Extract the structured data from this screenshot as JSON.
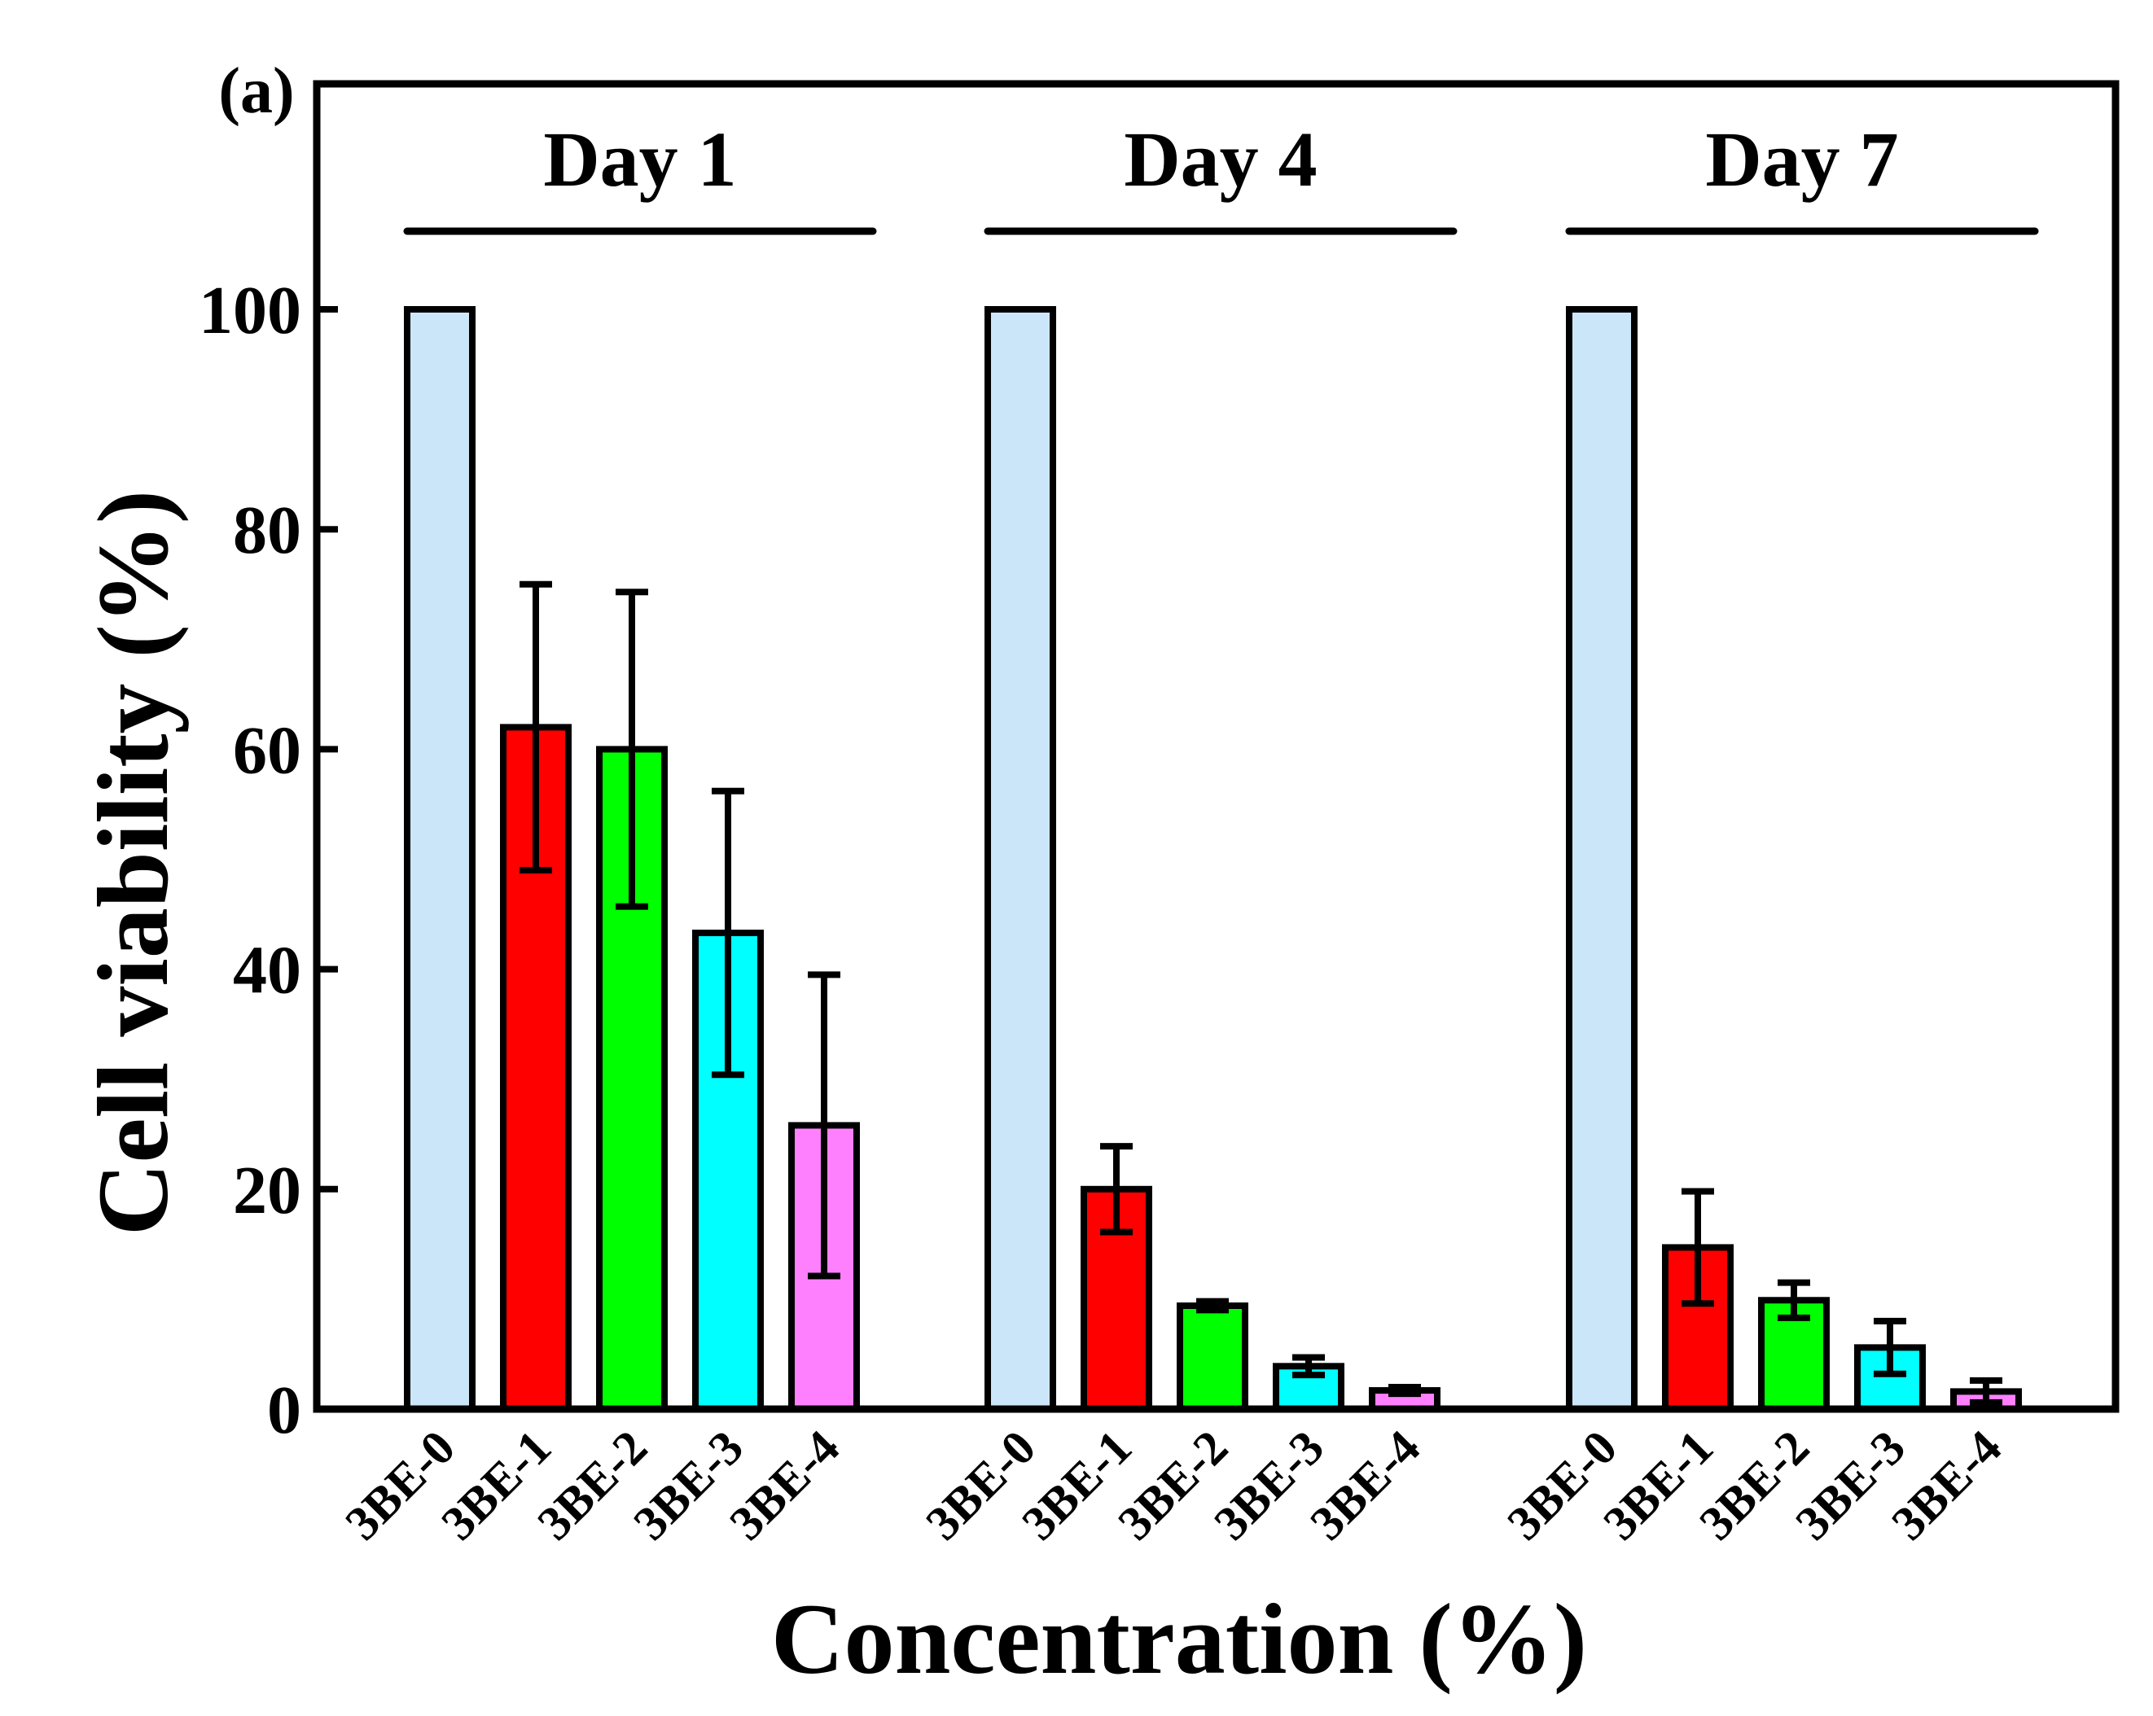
{
  "panel_label": "(a)",
  "chart_data": {
    "type": "bar",
    "xlabel": "Concentration (%)",
    "ylabel": "Cell viability (%)",
    "ylim": [
      0,
      120
    ],
    "yticks": [
      0,
      20,
      40,
      60,
      80,
      100
    ],
    "grid": false,
    "groups": [
      {
        "label": "Day 1",
        "bars": [
          {
            "category": "3BE-0",
            "value": 100,
            "error": 0,
            "color": "#cce6f9"
          },
          {
            "category": "3BE-1",
            "value": 62,
            "error": 13,
            "color": "#ff0000"
          },
          {
            "category": "3BE-2",
            "value": 60,
            "error": 14.3,
            "color": "#00ff00"
          },
          {
            "category": "3BE-3",
            "value": 43.3,
            "error": 12.9,
            "color": "#00ffff"
          },
          {
            "category": "3BE-4",
            "value": 25.8,
            "error": 13.7,
            "color": "#ff80ff"
          }
        ]
      },
      {
        "label": "Day 4",
        "bars": [
          {
            "category": "3BE-0",
            "value": 100,
            "error": 0,
            "color": "#cce6f9"
          },
          {
            "category": "3BE-1",
            "value": 20,
            "error": 3.9,
            "color": "#ff0000"
          },
          {
            "category": "3BE-2",
            "value": 9.4,
            "error": 0.4,
            "color": "#00ff00"
          },
          {
            "category": "3BE-3",
            "value": 3.9,
            "error": 0.8,
            "color": "#00ffff"
          },
          {
            "category": "3BE-4",
            "value": 1.7,
            "error": 0.3,
            "color": "#ff80ff"
          }
        ]
      },
      {
        "label": "Day 7",
        "bars": [
          {
            "category": "3BE-0",
            "value": 100,
            "error": 0,
            "color": "#cce6f9"
          },
          {
            "category": "3BE-1",
            "value": 14.7,
            "error": 5.1,
            "color": "#ff0000"
          },
          {
            "category": "3BE-2",
            "value": 9.9,
            "error": 1.6,
            "color": "#00ff00"
          },
          {
            "category": "3BE-3",
            "value": 5.6,
            "error": 2.4,
            "color": "#00ffff"
          },
          {
            "category": "3BE-4",
            "value": 1.6,
            "error": 1.0,
            "color": "#ff80ff"
          }
        ]
      }
    ]
  }
}
